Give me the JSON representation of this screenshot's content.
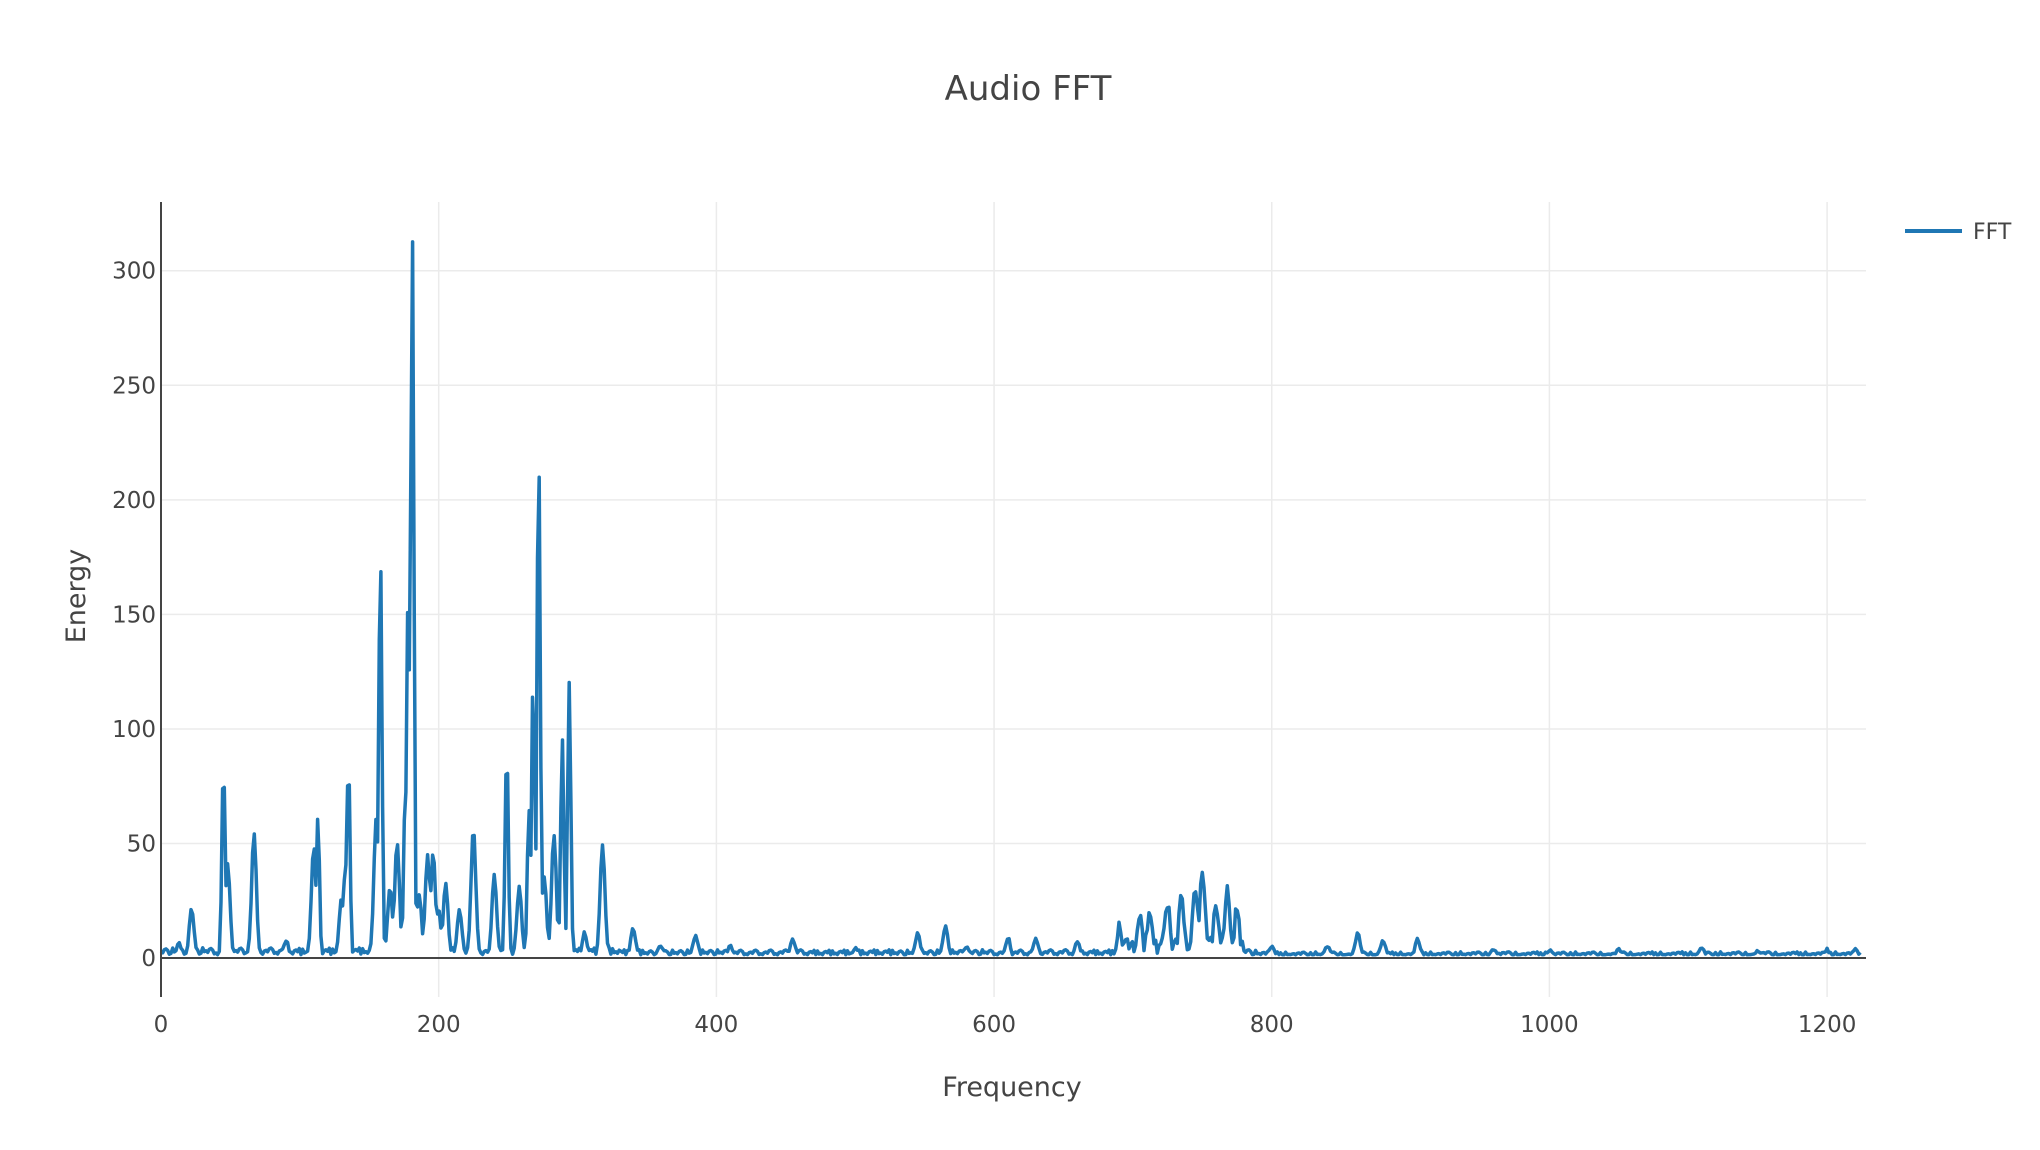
{
  "chart_data": {
    "type": "line",
    "title": "Audio FFT",
    "xlabel": "Frequency",
    "ylabel": "Energy",
    "xlim": [
      0,
      1228
    ],
    "ylim": [
      -17,
      330
    ],
    "xticks": [
      0,
      200,
      400,
      600,
      800,
      1000,
      1200
    ],
    "yticks": [
      0,
      50,
      100,
      150,
      200,
      250,
      300
    ],
    "grid": true,
    "legend": "top-right",
    "line_color": "#1f77b4",
    "series": [
      {
        "name": "FFT",
        "peaks": [
          [
            13,
            6
          ],
          [
            22,
            21
          ],
          [
            45,
            85
          ],
          [
            48,
            40
          ],
          [
            67,
            53
          ],
          [
            90,
            7
          ],
          [
            110,
            48
          ],
          [
            113,
            61
          ],
          [
            130,
            25
          ],
          [
            133,
            40
          ],
          [
            135,
            86
          ],
          [
            155,
            60
          ],
          [
            158,
            178
          ],
          [
            165,
            30
          ],
          [
            170,
            50
          ],
          [
            176,
            77
          ],
          [
            178,
            160
          ],
          [
            181,
            316
          ],
          [
            186,
            27
          ],
          [
            192,
            44
          ],
          [
            196,
            45
          ],
          [
            200,
            20
          ],
          [
            205,
            32
          ],
          [
            215,
            20
          ],
          [
            225,
            56
          ],
          [
            240,
            35
          ],
          [
            249,
            92
          ],
          [
            258,
            30
          ],
          [
            265,
            64
          ],
          [
            268,
            120
          ],
          [
            272,
            223
          ],
          [
            276,
            35
          ],
          [
            283,
            53
          ],
          [
            289,
            96
          ],
          [
            294,
            119
          ],
          [
            305,
            10
          ],
          [
            318,
            49
          ],
          [
            340,
            12
          ],
          [
            360,
            5
          ],
          [
            385,
            9
          ],
          [
            410,
            5
          ],
          [
            455,
            7
          ],
          [
            500,
            4
          ],
          [
            545,
            10
          ],
          [
            565,
            13
          ],
          [
            580,
            4
          ],
          [
            610,
            8
          ],
          [
            630,
            8
          ],
          [
            660,
            7
          ],
          [
            690,
            10
          ],
          [
            705,
            14
          ],
          [
            712,
            15
          ],
          [
            725,
            20
          ],
          [
            735,
            23
          ],
          [
            745,
            27
          ],
          [
            750,
            34
          ],
          [
            760,
            20
          ],
          [
            768,
            25
          ],
          [
            775,
            18
          ],
          [
            800,
            4
          ],
          [
            840,
            4
          ],
          [
            862,
            10
          ],
          [
            880,
            7
          ],
          [
            905,
            8
          ],
          [
            960,
            3
          ],
          [
            1000,
            3
          ],
          [
            1050,
            3
          ],
          [
            1110,
            4
          ],
          [
            1150,
            3
          ],
          [
            1200,
            3
          ],
          [
            1220,
            3
          ]
        ]
      }
    ]
  }
}
